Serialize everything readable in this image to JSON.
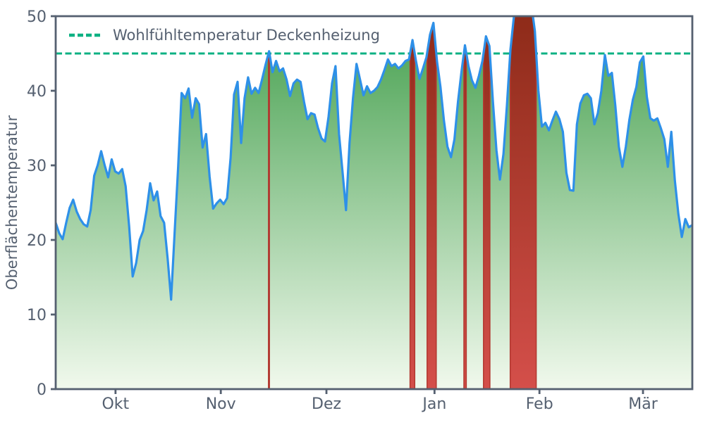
{
  "chart_data": {
    "type": "area",
    "title": "",
    "xlabel": "",
    "ylabel": "Oberflächentemperatur",
    "ylim": [
      0,
      50
    ],
    "yticks": [
      0,
      10,
      20,
      30,
      40,
      50
    ],
    "grid": false,
    "legend_position": "upper left",
    "x_unit": "days (mid-September to mid-March)",
    "months": [
      {
        "label": "Okt",
        "day": 17.1
      },
      {
        "label": "Nov",
        "day": 47.2
      },
      {
        "label": "Dez",
        "day": 77.4
      },
      {
        "label": "Jan",
        "day": 108.3
      },
      {
        "label": "Feb",
        "day": 138.3
      },
      {
        "label": "Mär",
        "day": 167.9
      }
    ],
    "threshold": {
      "value": 45,
      "label": "Wohlfühltemperatur Deckenheizung"
    },
    "exceedance_note": "intervals where the series exceeds the threshold are filled red",
    "series": [
      {
        "name": "Oberflächentemperatur",
        "values": [
          22.3,
          20.9,
          20.1,
          22.3,
          24.3,
          25.4,
          23.8,
          22.8,
          22.1,
          21.8,
          24.0,
          28.6,
          30.0,
          31.9,
          30.0,
          28.4,
          30.8,
          29.2,
          28.9,
          29.5,
          27.2,
          21.8,
          15.1,
          16.9,
          20.0,
          21.2,
          24.0,
          27.6,
          25.3,
          26.5,
          23.2,
          22.3,
          17.5,
          12.0,
          21.0,
          29.8,
          39.7,
          39.0,
          40.3,
          36.4,
          39.0,
          38.2,
          32.4,
          34.2,
          28.5,
          24.2,
          24.9,
          25.4,
          24.8,
          25.6,
          31.0,
          39.5,
          41.2,
          33.0,
          39.0,
          41.8,
          39.6,
          40.4,
          39.7,
          41.5,
          43.5,
          45.3,
          42.5,
          44.0,
          42.6,
          43.0,
          41.5,
          39.3,
          41.0,
          41.5,
          41.2,
          38.5,
          36.2,
          37.0,
          36.8,
          35.0,
          33.6,
          33.2,
          36.5,
          41.0,
          43.3,
          34.2,
          29.2,
          24.0,
          33.0,
          39.0,
          43.6,
          41.5,
          39.4,
          40.6,
          39.7,
          40.0,
          40.5,
          41.5,
          42.8,
          44.2,
          43.3,
          43.6,
          43.0,
          43.4,
          44.0,
          44.2,
          46.8,
          44.0,
          41.6,
          43.0,
          44.5,
          47.5,
          49.1,
          44.0,
          40.5,
          36.0,
          32.5,
          31.1,
          33.5,
          38.5,
          42.5,
          46.1,
          43.3,
          41.4,
          40.4,
          42.0,
          44.0,
          47.3,
          46.0,
          38.5,
          32.0,
          28.1,
          31.5,
          38.0,
          45.5,
          50.0,
          52.0,
          53.0,
          52.5,
          52.8,
          51.5,
          48.0,
          40.0,
          35.2,
          35.7,
          34.7,
          36.0,
          37.2,
          36.2,
          34.5,
          29.0,
          26.7,
          26.6,
          35.5,
          38.3,
          39.4,
          39.6,
          39.0,
          35.5,
          37.0,
          40.0,
          44.8,
          42.0,
          42.4,
          38.0,
          32.5,
          29.8,
          32.5,
          36.1,
          38.8,
          40.5,
          43.8,
          44.6,
          39.2,
          36.3,
          36.0,
          36.3,
          35.0,
          33.5,
          29.8,
          34.5,
          28.0,
          23.5,
          20.4,
          22.8,
          21.7,
          22.0
        ]
      }
    ]
  },
  "colors": {
    "line": "#2e90e8",
    "threshold": "#0db183",
    "axis": "#556070",
    "area_green_top": "#45a04e",
    "area_green_bottom": "#f1f9ed",
    "exceed_red_top": "#8e2b19",
    "exceed_red_bottom": "#d44f4a",
    "exceed_red_edge": "#b23830",
    "background": "#ffffff"
  }
}
